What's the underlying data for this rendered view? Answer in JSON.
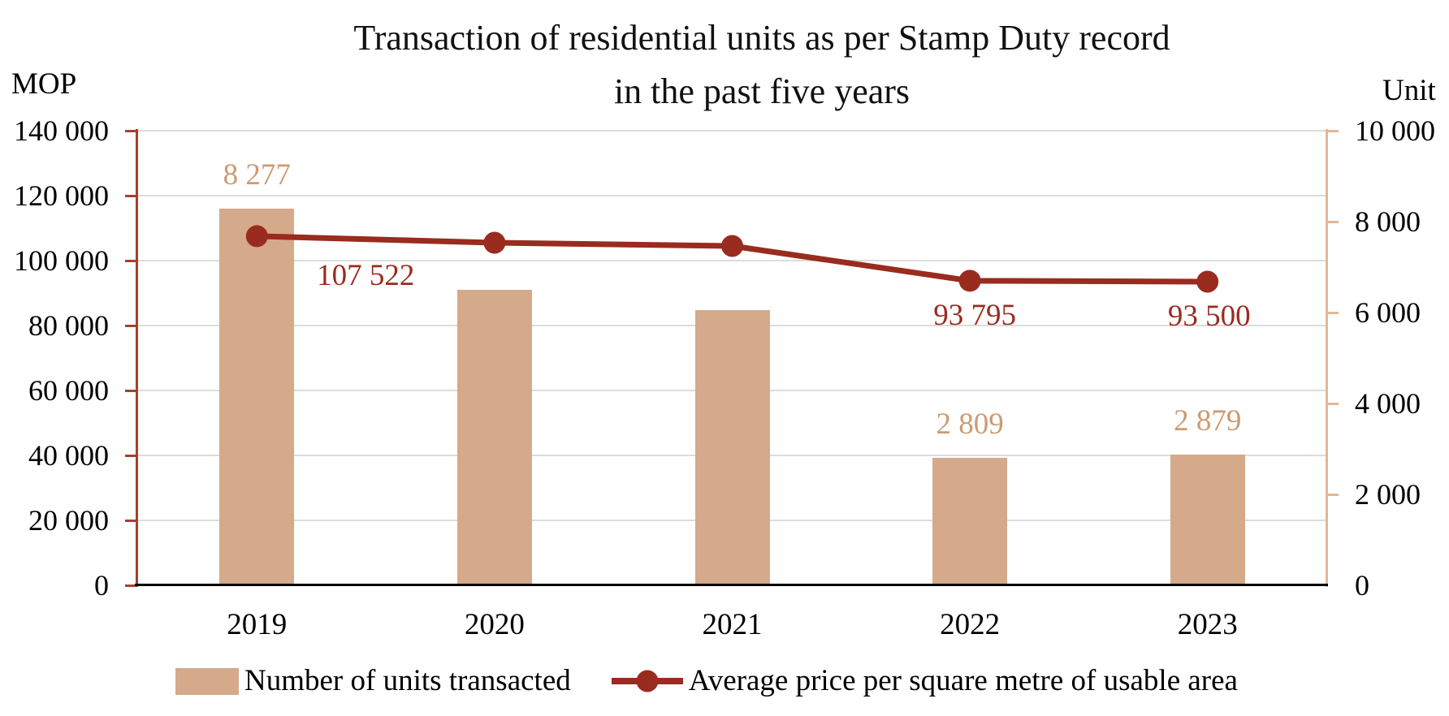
{
  "title": {
    "line1": "Transaction of residential units as per Stamp Duty record",
    "line2": "in the past five years"
  },
  "left_axis": {
    "unit_label": "MOP",
    "min": 0,
    "max": 140000,
    "step": 20000,
    "tick_labels": [
      "0",
      "20 000",
      "40 000",
      "60 000",
      "80 000",
      "100 000",
      "120 000",
      "140 000"
    ],
    "axis_color": "#A5402D"
  },
  "right_axis": {
    "unit_label": "Unit",
    "min": 0,
    "max": 10000,
    "step": 2000,
    "tick_labels": [
      "0",
      "2 000",
      "4 000",
      "6 000",
      "8 000",
      "10 000"
    ],
    "axis_color": "#E3B795"
  },
  "x_axis": {
    "categories": [
      "2019",
      "2020",
      "2021",
      "2022",
      "2023"
    ]
  },
  "legend": {
    "items": [
      {
        "label": "Number of units transacted",
        "swatch": "bar-swatch",
        "color": "#D4AA8A"
      },
      {
        "label": "Average price per square metre of usable area",
        "swatch": "line-marker-swatch",
        "color": "#9A2B1F"
      }
    ]
  },
  "chart_data": {
    "type": "combo-bar-line",
    "title": "Transaction of residential units as per Stamp Duty record in the past five years",
    "categories": [
      "2019",
      "2020",
      "2021",
      "2022",
      "2023"
    ],
    "series": [
      {
        "name": "Number of units transacted",
        "type": "bar",
        "axis": "right",
        "axis_unit": "Unit",
        "color": "#D4AA8A",
        "label_color": "#CC9B72",
        "values": [
          8277,
          6500,
          6050,
          2809,
          2879
        ],
        "data_labels": {
          "0": "8 277",
          "3": "2 809",
          "4": "2 879"
        },
        "note": "2020 and 2021 values estimated from bar heights (no labels shown)"
      },
      {
        "name": "Average price per square metre of usable area",
        "type": "line",
        "axis": "left",
        "axis_unit": "MOP",
        "color": "#9A2B1F",
        "label_color": "#9A2B1F",
        "values": [
          107522,
          105500,
          104500,
          93795,
          93500
        ],
        "data_labels": {
          "0": "107 522",
          "3": "93 795",
          "4": "93 500"
        },
        "note": "2020 and 2021 values estimated from line position (no labels shown)"
      }
    ],
    "left_axis_range": [
      0,
      140000
    ],
    "right_axis_range": [
      0,
      10000
    ],
    "gridlines": "horizontal gray lines every 20 000 MOP",
    "legend_position": "bottom",
    "gridline_color": "#DCDCDC",
    "bottom_axis_color": "#000000"
  }
}
